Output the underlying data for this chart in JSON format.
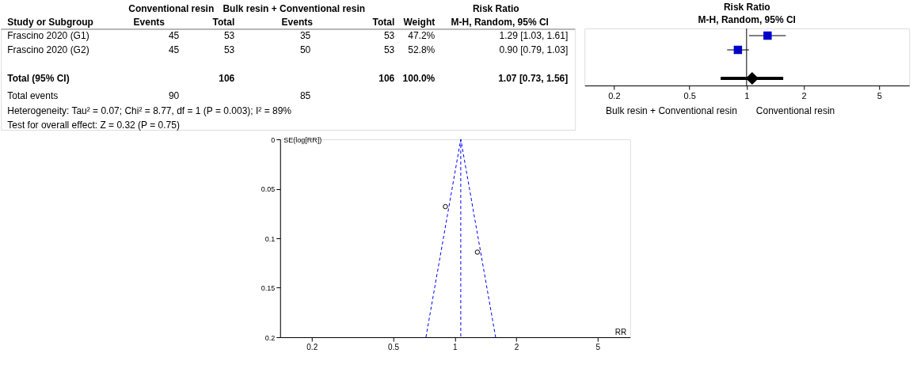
{
  "chart_data": [
    {
      "type": "scatter",
      "title": "Risk Ratio",
      "subtitle": "M-H, Random, 95% CI",
      "orientation": "horizontal",
      "categories": [
        "Frascino 2020 (G1)",
        "Frascino 2020 (G2)",
        null,
        "Total (95% CI)"
      ],
      "series": [
        {
          "color": "#0000cc",
          "marker": "square",
          "values": [
            1.29,
            0.9,
            null,
            null
          ],
          "errors": [
            [
              1.03,
              1.61
            ],
            [
              0.79,
              1.03
            ],
            null,
            null
          ]
        },
        {
          "color": "#000000",
          "marker": "diamond",
          "values": [
            null,
            null,
            null,
            1.07
          ],
          "errors": [
            null,
            null,
            null,
            [
              0.73,
              1.56
            ]
          ]
        }
      ],
      "log": "x",
      "xlim": [
        0.14,
        7.2
      ],
      "xticks": [
        0.2,
        0.5,
        1,
        2,
        5
      ],
      "ref_lines": [
        {
          "axis": "x",
          "value": 1,
          "color": "#000000"
        }
      ],
      "annotations": [
        "Bulk resin + Conventional resin",
        "Conventional resin",
        "Conventional resin",
        "Bulk resin + Conventional resin",
        "Risk Ratio",
        "Study or Subgroup",
        "Events",
        "Total",
        "Events",
        "Total",
        "Weight",
        "M-H, Random, 95% CI",
        "45",
        "53",
        "35",
        "53",
        "47.2%",
        "1.29 [1.03, 1.61]",
        "45",
        "53",
        "50",
        "53",
        "52.8%",
        "0.90 [0.79, 1.03]",
        "106",
        "106",
        "100.0%",
        "1.07 [0.73, 1.56]",
        "Total events",
        "90",
        "85",
        "Heterogeneity: Tau² = 0.07; Chi² = 8.77, df = 1 (P = 0.003); I² = 89%",
        "Test for overall effect: Z = 0.32 (P = 0.75)"
      ],
      "tick_labels": "x",
      "grid": false
    },
    {
      "type": "scatter",
      "xlabel": "RR",
      "ylabel": "SE(log[RR])",
      "log": "x",
      "xlim": [
        0.14,
        7.2
      ],
      "xticks": [
        0.2,
        0.5,
        1,
        2,
        5
      ],
      "ylim": [
        0.2,
        0
      ],
      "yticks": [
        0,
        0.05,
        0.1,
        0.15,
        0.2
      ],
      "series": [
        {
          "color": "#000000",
          "marker": "circle",
          "x": [
            1.29,
            0.9
          ],
          "values": [
            0.114,
            0.068
          ]
        },
        {
          "type": "line",
          "line_style": "dashed",
          "color": "#0000ff",
          "x": [
            0.723,
            1.07,
            1.584
          ],
          "values": [
            0.2,
            0,
            0.2
          ]
        }
      ],
      "ref_lines": [
        {
          "axis": "x",
          "value": 1.07,
          "color": "#0000ff",
          "line_style": "dashed"
        }
      ],
      "grid": false
    }
  ]
}
